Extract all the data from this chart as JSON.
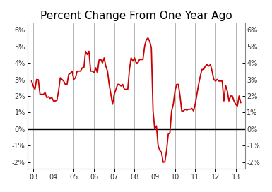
{
  "title": "Percent Change From One Year Ago",
  "title_fontsize": 11,
  "line_color": "#cc0000",
  "line_width": 1.3,
  "background_color": "#ffffff",
  "yticks": [
    -2,
    -1,
    0,
    1,
    2,
    3,
    4,
    5,
    6
  ],
  "ytick_labels": [
    "-2%",
    "-1%",
    "0%",
    "1%",
    "2%",
    "3%",
    "4%",
    "5%",
    "6%"
  ],
  "ylim": [
    -2.4,
    6.4
  ],
  "xlim_start": 2002.7,
  "xlim_end": 2013.45,
  "xtick_years": [
    2003,
    2004,
    2005,
    2006,
    2007,
    2008,
    2009,
    2010,
    2011,
    2012,
    2013
  ],
  "xtick_labels": [
    "03",
    "04",
    "05",
    "06",
    "07",
    "08",
    "09",
    "10",
    "11",
    "12",
    "13"
  ],
  "vline_years": [
    2003,
    2004,
    2005,
    2006,
    2007,
    2008,
    2009,
    2010,
    2011,
    2012,
    2013
  ],
  "zero_line_color": "#000000",
  "grid_color": "#aaaaaa",
  "dates": [
    2002.917,
    2003.0,
    2003.083,
    2003.167,
    2003.25,
    2003.333,
    2003.417,
    2003.5,
    2003.583,
    2003.667,
    2003.75,
    2003.833,
    2003.917,
    2004.0,
    2004.083,
    2004.167,
    2004.25,
    2004.333,
    2004.417,
    2004.5,
    2004.583,
    2004.667,
    2004.75,
    2004.833,
    2004.917,
    2005.0,
    2005.083,
    2005.167,
    2005.25,
    2005.333,
    2005.417,
    2005.5,
    2005.583,
    2005.667,
    2005.75,
    2005.833,
    2005.917,
    2006.0,
    2006.083,
    2006.167,
    2006.25,
    2006.333,
    2006.417,
    2006.5,
    2006.583,
    2006.667,
    2006.75,
    2006.833,
    2006.917,
    2007.0,
    2007.083,
    2007.167,
    2007.25,
    2007.333,
    2007.417,
    2007.5,
    2007.583,
    2007.667,
    2007.75,
    2007.833,
    2007.917,
    2008.0,
    2008.083,
    2008.167,
    2008.25,
    2008.333,
    2008.417,
    2008.5,
    2008.583,
    2008.667,
    2008.75,
    2008.833,
    2008.917,
    2009.0,
    2009.083,
    2009.167,
    2009.25,
    2009.333,
    2009.417,
    2009.5,
    2009.583,
    2009.667,
    2009.75,
    2009.833,
    2009.917,
    2010.0,
    2010.083,
    2010.167,
    2010.25,
    2010.333,
    2010.417,
    2010.5,
    2010.583,
    2010.667,
    2010.75,
    2010.833,
    2010.917,
    2011.0,
    2011.083,
    2011.167,
    2011.25,
    2011.333,
    2011.417,
    2011.5,
    2011.583,
    2011.667,
    2011.75,
    2011.833,
    2011.917,
    2012.0,
    2012.083,
    2012.167,
    2012.25,
    2012.333,
    2012.417,
    2012.5,
    2012.583,
    2012.667,
    2012.75,
    2012.833,
    2012.917,
    2013.0,
    2013.083,
    2013.167,
    2013.25
  ],
  "values": [
    2.9,
    2.6,
    2.4,
    3.0,
    2.98,
    2.1,
    2.1,
    2.1,
    2.2,
    1.9,
    1.95,
    1.85,
    1.9,
    1.7,
    1.7,
    1.74,
    2.3,
    3.1,
    3.0,
    2.9,
    2.7,
    2.7,
    3.3,
    3.37,
    3.5,
    3.0,
    3.1,
    3.5,
    3.5,
    3.5,
    3.7,
    3.7,
    4.7,
    4.5,
    4.7,
    3.5,
    3.5,
    3.4,
    3.7,
    3.4,
    4.17,
    4.2,
    4.0,
    4.3,
    3.8,
    3.5,
    2.7,
    2.1,
    1.5,
    2.1,
    2.4,
    2.7,
    2.7,
    2.6,
    2.7,
    2.4,
    2.4,
    2.4,
    3.6,
    4.3,
    4.1,
    4.3,
    4.0,
    4.0,
    4.2,
    4.2,
    4.2,
    5.0,
    5.4,
    5.5,
    5.3,
    4.9,
    1.1,
    0.0,
    0.2,
    -1.0,
    -1.28,
    -1.4,
    -2.0,
    -1.97,
    -1.3,
    -0.3,
    -0.2,
    1.1,
    1.5,
    2.3,
    2.7,
    2.7,
    2.0,
    1.1,
    1.1,
    1.2,
    1.15,
    1.2,
    1.2,
    1.25,
    1.1,
    1.5,
    2.1,
    2.7,
    3.2,
    3.6,
    3.6,
    3.8,
    3.9,
    3.8,
    3.9,
    3.5,
    3.0,
    2.9,
    3.0,
    2.9,
    2.9,
    2.9,
    1.7,
    2.65,
    2.3,
    1.7,
    2.0,
    2.0,
    1.7,
    1.5,
    1.4,
    2.0,
    1.6
  ]
}
